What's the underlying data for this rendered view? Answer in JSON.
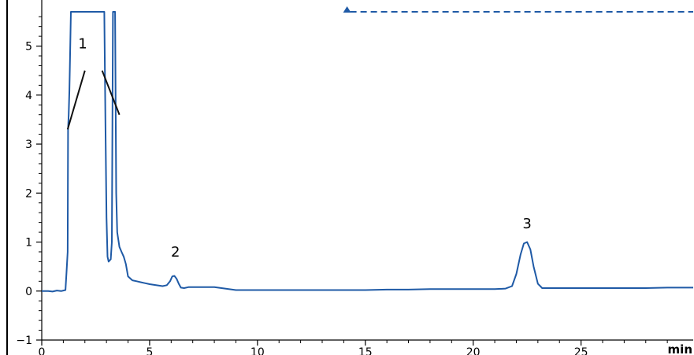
{
  "chart_data": {
    "type": "line",
    "xlabel": "min",
    "ylabel": "",
    "title": "",
    "xlim": [
      0,
      30.2
    ],
    "ylim": [
      -1,
      5.7
    ],
    "xticks": [
      0,
      5,
      10,
      15,
      20,
      25
    ],
    "yticks": [
      -1,
      0,
      1,
      2,
      3,
      4,
      5
    ],
    "grid": false,
    "line_color": "#1f5aa6",
    "baseline": {
      "style": "dashed",
      "y": 5.7,
      "x_start": 14.3,
      "x_end": 30.2,
      "color": "#1f5aa6",
      "start_marker": "triangle-up"
    },
    "series": [
      {
        "x": [
          0,
          0.3,
          0.5,
          0.7,
          0.9,
          1.0,
          1.1,
          1.15,
          1.2,
          1.22,
          1.25,
          1.28,
          1.3,
          1.35,
          1.45,
          1.6,
          1.8,
          2.0,
          2.2,
          2.4,
          2.6,
          2.8,
          2.86,
          2.9,
          2.95,
          3.0,
          3.05,
          3.1,
          3.2,
          3.25,
          3.3,
          3.35,
          3.4,
          3.45,
          3.5,
          3.6,
          3.7,
          3.8,
          3.9,
          4.0,
          4.2,
          4.4,
          4.6,
          4.8,
          5.0,
          5.3,
          5.6,
          5.8,
          5.95,
          6.05,
          6.15,
          6.25,
          6.35,
          6.45,
          6.6,
          6.8,
          7.0,
          7.5,
          8.0,
          8.5,
          9.0,
          10,
          12,
          14,
          15,
          16,
          17,
          18,
          19,
          20,
          21,
          21.5,
          21.8,
          22.0,
          22.2,
          22.35,
          22.5,
          22.65,
          22.8,
          23.0,
          23.2,
          23.5,
          24,
          25,
          26,
          27,
          28,
          29,
          30.2
        ],
        "y": [
          0,
          0.0,
          -0.01,
          0.01,
          0.0,
          0.01,
          0.02,
          0.4,
          0.8,
          3.3,
          3.6,
          4.1,
          4.5,
          5.7,
          5.7,
          5.7,
          5.7,
          5.7,
          5.7,
          5.7,
          5.7,
          5.7,
          5.7,
          5.7,
          3.5,
          1.5,
          0.7,
          0.6,
          0.65,
          1.0,
          5.7,
          5.7,
          5.7,
          2.0,
          1.2,
          0.9,
          0.8,
          0.7,
          0.55,
          0.3,
          0.22,
          0.2,
          0.18,
          0.16,
          0.14,
          0.12,
          0.1,
          0.12,
          0.2,
          0.3,
          0.31,
          0.25,
          0.15,
          0.07,
          0.06,
          0.08,
          0.08,
          0.08,
          0.08,
          0.05,
          0.02,
          0.02,
          0.02,
          0.02,
          0.02,
          0.03,
          0.03,
          0.04,
          0.04,
          0.04,
          0.04,
          0.05,
          0.1,
          0.35,
          0.75,
          0.97,
          1.0,
          0.85,
          0.5,
          0.15,
          0.06,
          0.06,
          0.06,
          0.06,
          0.06,
          0.06,
          0.06,
          0.07,
          0.07
        ]
      }
    ],
    "annotations": [
      {
        "text": "1",
        "x": 1.9,
        "y": 4.95
      },
      {
        "text": "2",
        "x": 6.2,
        "y": 0.7
      },
      {
        "text": "3",
        "x": 22.5,
        "y": 1.28
      }
    ],
    "leader_lines": [
      {
        "from": [
          1.2,
          3.3
        ],
        "to": [
          2.0,
          4.5
        ]
      },
      {
        "from": [
          2.8,
          4.5
        ],
        "to": [
          3.6,
          3.6
        ]
      }
    ]
  }
}
